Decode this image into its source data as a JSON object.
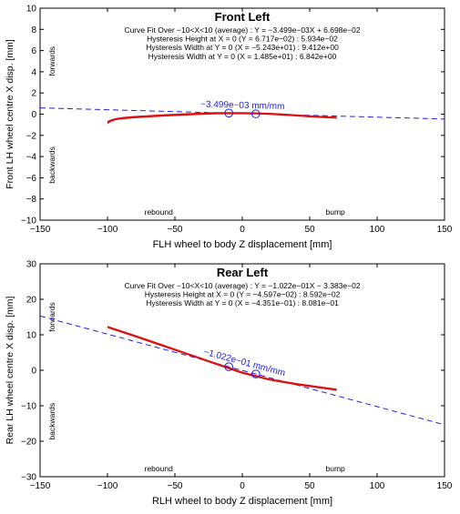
{
  "chart_data": [
    {
      "type": "line",
      "title": "Front Left",
      "annotations": [
        "Curve Fit Over −10<X<10 (average) : Y = −3.499e−03X + 6.698e−02",
        "Hysteresis Height at X = 0 (Y = 6.717e−02) : 5.934e−02",
        "Hysteresis Width at Y = 0 (X = −5.243e+01) : 9.412e+00",
        "Hysteresis Width at Y = 0 (X = 1.485e+01) : 6.842e+00"
      ],
      "slope_label": "−3.499e−03 mm/mm",
      "xlabel": "FLH wheel to body Z displacement [mm]",
      "ylabel": "Front LH wheel centre X disp. [mm]",
      "xlim": [
        -150,
        150
      ],
      "ylim": [
        -10,
        10
      ],
      "xticks": [
        -150,
        -100,
        -50,
        0,
        50,
        100,
        150
      ],
      "yticks": [
        -10,
        -8,
        -6,
        -4,
        -2,
        0,
        2,
        4,
        6,
        8,
        10
      ],
      "xtick_labels": [
        "−150",
        "−100",
        "−50",
        "0",
        "50",
        "100",
        "150"
      ],
      "ytick_labels": [
        "−10",
        "−8",
        "−6",
        "−4",
        "−2",
        "0",
        "2",
        "4",
        "6",
        "8",
        "10"
      ],
      "region_labels": {
        "forwards": "forwards",
        "backwards": "backwards",
        "rebound": "rebound",
        "bump": "bump"
      },
      "grid": false,
      "fit": {
        "slope": -0.003499,
        "intercept": 0.06698,
        "color": "#2020dd"
      },
      "markers": [
        {
          "x": -10,
          "y": 0.102
        },
        {
          "x": 10,
          "y": 0.032
        }
      ],
      "series": [
        {
          "color": "#dd1111",
          "x": [
            -100,
            -97,
            -93,
            -88,
            -80,
            -70,
            -60,
            -50,
            -40,
            -30,
            -20,
            -10,
            0,
            10,
            20,
            30,
            40,
            50,
            60,
            70
          ],
          "y": [
            -0.85,
            -0.62,
            -0.48,
            -0.4,
            -0.32,
            -0.24,
            -0.17,
            -0.11,
            -0.05,
            0.0,
            0.04,
            0.06,
            0.06,
            0.04,
            0.0,
            -0.07,
            -0.15,
            -0.23,
            -0.3,
            -0.36
          ]
        },
        {
          "color": "#dd1111",
          "x": [
            -100,
            -97,
            -93,
            -88,
            -80,
            -70,
            -60,
            -50,
            -40,
            -30,
            -20,
            -10,
            0,
            10,
            20,
            30,
            40,
            50,
            60,
            70
          ],
          "y": [
            -0.72,
            -0.55,
            -0.42,
            -0.33,
            -0.24,
            -0.16,
            -0.09,
            -0.03,
            0.03,
            0.08,
            0.12,
            0.13,
            0.12,
            0.1,
            0.06,
            -0.01,
            -0.09,
            -0.17,
            -0.24,
            -0.3
          ]
        }
      ]
    },
    {
      "type": "line",
      "title": "Rear Left",
      "annotations": [
        "Curve Fit Over −10<X<10 (average) : Y = −1.022e−01X − 3.383e−02",
        "Hysteresis Height at X = 0 (Y = −4.597e−02) : 8.592e−02",
        "Hysteresis Width at Y = 0 (X = −4.351e−01) : 8.081e−01"
      ],
      "slope_label": "−1.022e−01 mm/mm",
      "xlabel": "RLH wheel to body Z displacement [mm]",
      "ylabel": "Rear LH wheel centre X disp. [mm]",
      "xlim": [
        -150,
        150
      ],
      "ylim": [
        -30,
        30
      ],
      "xticks": [
        -150,
        -100,
        -50,
        0,
        50,
        100,
        150
      ],
      "yticks": [
        -30,
        -20,
        -10,
        0,
        10,
        20,
        30
      ],
      "xtick_labels": [
        "−150",
        "−100",
        "−50",
        "0",
        "50",
        "100",
        "150"
      ],
      "ytick_labels": [
        "−30",
        "−20",
        "−10",
        "0",
        "10",
        "20",
        "30"
      ],
      "region_labels": {
        "forwards": "forwards",
        "backwards": "backwards",
        "rebound": "rebound",
        "bump": "bump"
      },
      "grid": false,
      "fit": {
        "slope": -0.1022,
        "intercept": -0.03383,
        "color": "#2020dd"
      },
      "markers": [
        {
          "x": -10,
          "y": 0.988
        },
        {
          "x": 10,
          "y": -1.056
        }
      ],
      "series": [
        {
          "color": "#dd1111",
          "x": [
            -100,
            -80,
            -60,
            -40,
            -20,
            0,
            20,
            40,
            70
          ],
          "y": [
            12.1,
            9.6,
            7.0,
            4.4,
            1.8,
            -0.8,
            -2.7,
            -4.0,
            -5.6
          ]
        },
        {
          "color": "#dd1111",
          "x": [
            -100,
            -80,
            -60,
            -40,
            -20,
            0,
            20,
            40,
            70
          ],
          "y": [
            12.3,
            9.8,
            7.2,
            4.6,
            2.0,
            -0.6,
            -2.5,
            -3.8,
            -5.4
          ]
        }
      ]
    }
  ]
}
